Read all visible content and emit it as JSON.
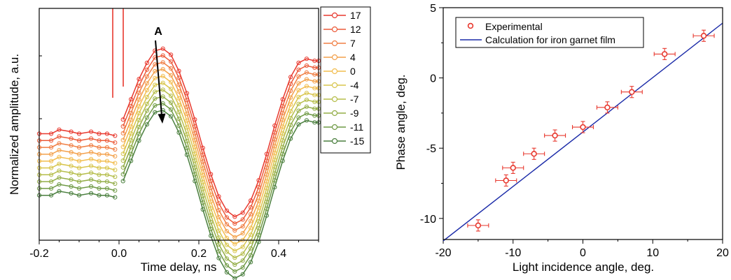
{
  "chart_data": [
    {
      "type": "line",
      "xlabel": "Time delay, ns",
      "ylabel": "Normalized amplitude, a.u.",
      "xlim": [
        -0.2,
        0.5
      ],
      "xticks": [
        "-0.2",
        "0.0",
        "0.2",
        "0.4"
      ],
      "yticks_labeled": false,
      "grid": false,
      "legend_position": "top-right",
      "annotation": "A",
      "series": [
        {
          "name": "17",
          "color": "#e8392f",
          "level": 0
        },
        {
          "name": "12",
          "color": "#ec5b3a",
          "level": 1
        },
        {
          "name": "7",
          "color": "#f07e43",
          "level": 2
        },
        {
          "name": "4",
          "color": "#f3a04a",
          "level": 3
        },
        {
          "name": "0",
          "color": "#f2bd4f",
          "level": 4
        },
        {
          "name": "-4",
          "color": "#d8c54c",
          "level": 5
        },
        {
          "name": "-7",
          "color": "#b5bd4a",
          "level": 6
        },
        {
          "name": "-9",
          "color": "#93ad47",
          "level": 7
        },
        {
          "name": "-11",
          "color": "#6f9a45",
          "level": 8
        },
        {
          "name": "-15",
          "color": "#4a7f3e",
          "level": 9
        }
      ],
      "waveform": {
        "x": [
          -0.2,
          -0.17,
          -0.15,
          -0.12,
          -0.1,
          -0.07,
          -0.05,
          -0.03,
          -0.01,
          0.01,
          0.03,
          0.05,
          0.07,
          0.09,
          0.11,
          0.13,
          0.15,
          0.17,
          0.19,
          0.21,
          0.23,
          0.25,
          0.27,
          0.29,
          0.31,
          0.33,
          0.35,
          0.37,
          0.39,
          0.41,
          0.43,
          0.45,
          0.47,
          0.49,
          0.5
        ],
        "top_series": [
          0.45,
          0.45,
          0.47,
          0.46,
          0.45,
          0.46,
          0.45,
          0.45,
          0.44,
          0.52,
          0.62,
          0.72,
          0.8,
          0.86,
          0.87,
          0.84,
          0.76,
          0.65,
          0.52,
          0.38,
          0.25,
          0.14,
          0.07,
          0.04,
          0.06,
          0.12,
          0.22,
          0.35,
          0.49,
          0.62,
          0.73,
          0.8,
          0.82,
          0.81,
          0.81
        ]
      }
    },
    {
      "type": "scatter",
      "xlabel": "Light incidence angle, deg.",
      "ylabel": "Phase angle, deg.",
      "xlim": [
        -20,
        20
      ],
      "ylim": [
        -11.5,
        5
      ],
      "xticks": [
        "-20",
        "-10",
        "0",
        "10",
        "20"
      ],
      "yticks": [
        "-10",
        "-5",
        "0",
        "5"
      ],
      "grid": false,
      "legend_position": "top-left",
      "series": [
        {
          "name": "Experimental",
          "color": "#e8392f",
          "x": [
            -15,
            -11,
            -10,
            -7,
            -4,
            0,
            3.5,
            7,
            11.7,
            17.3
          ],
          "y": [
            -10.5,
            -7.3,
            -6.4,
            -5.4,
            -4.1,
            -3.5,
            -2.1,
            -1.0,
            1.7,
            3.0
          ],
          "xerr": 1.5,
          "yerr": 0.4
        },
        {
          "name": "Calculation for iron garnet film",
          "color": "#1a2aa8",
          "x": [
            -20,
            20
          ],
          "y": [
            -11.6,
            3.9
          ]
        }
      ]
    }
  ]
}
